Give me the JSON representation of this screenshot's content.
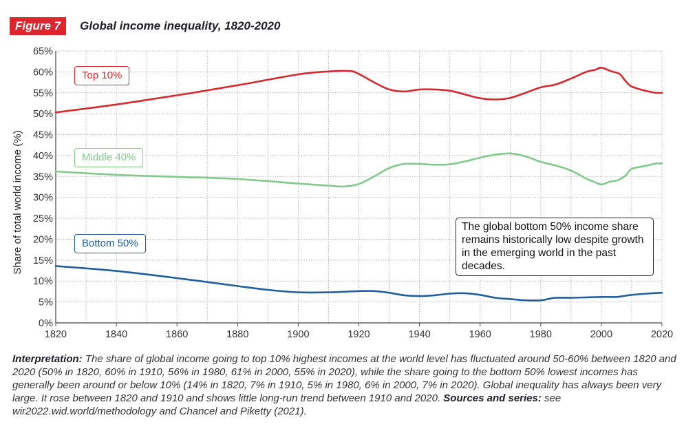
{
  "figure": {
    "tag": "Figure 7",
    "title": "Global income inequality, 1820-2020"
  },
  "colors": {
    "accent": "#e0242e",
    "top10": "#d9272e",
    "middle40": "#82c98c",
    "bottom50": "#1f5f9e",
    "grid": "#b9b9b9",
    "axis": "#444444"
  },
  "chart_data": {
    "type": "line",
    "title": "",
    "xlabel": "",
    "ylabel": "Share of total world income (%)",
    "xlim": [
      1820,
      2020
    ],
    "ylim": [
      0,
      65
    ],
    "x_ticks": [
      1820,
      1840,
      1860,
      1880,
      1900,
      1920,
      1940,
      1960,
      1980,
      2000,
      2020
    ],
    "y_ticks": [
      "0%",
      "5%",
      "10%",
      "15%",
      "20%",
      "25%",
      "30%",
      "35%",
      "40%",
      "45%",
      "50%",
      "55%",
      "60%",
      "65%"
    ],
    "grid": "dotted, both axes",
    "legend": "inline labels",
    "series": [
      {
        "name": "Top 10%",
        "color": "#d9272e",
        "points": [
          [
            1820,
            50.3
          ],
          [
            1840,
            52.2
          ],
          [
            1860,
            54.4
          ],
          [
            1880,
            56.8
          ],
          [
            1900,
            59.4
          ],
          [
            1910,
            60.1
          ],
          [
            1917,
            60.2
          ],
          [
            1920,
            59.5
          ],
          [
            1925,
            57.5
          ],
          [
            1930,
            55.8
          ],
          [
            1935,
            55.3
          ],
          [
            1940,
            55.8
          ],
          [
            1945,
            55.8
          ],
          [
            1950,
            55.5
          ],
          [
            1955,
            54.6
          ],
          [
            1960,
            53.7
          ],
          [
            1965,
            53.4
          ],
          [
            1970,
            53.8
          ],
          [
            1975,
            55.0
          ],
          [
            1980,
            56.3
          ],
          [
            1985,
            57.0
          ],
          [
            1990,
            58.4
          ],
          [
            1995,
            60.0
          ],
          [
            1998,
            60.5
          ],
          [
            2000,
            61.0
          ],
          [
            2003,
            60.2
          ],
          [
            2006,
            59.5
          ],
          [
            2008,
            57.8
          ],
          [
            2010,
            56.5
          ],
          [
            2015,
            55.4
          ],
          [
            2018,
            55.0
          ],
          [
            2020,
            55.0
          ]
        ]
      },
      {
        "name": "Middle 40%",
        "color": "#82c98c",
        "points": [
          [
            1820,
            36.2
          ],
          [
            1840,
            35.4
          ],
          [
            1860,
            34.9
          ],
          [
            1880,
            34.4
          ],
          [
            1900,
            33.3
          ],
          [
            1910,
            32.8
          ],
          [
            1915,
            32.6
          ],
          [
            1920,
            33.2
          ],
          [
            1925,
            35.0
          ],
          [
            1930,
            37.0
          ],
          [
            1935,
            38.0
          ],
          [
            1940,
            38.0
          ],
          [
            1945,
            37.8
          ],
          [
            1950,
            37.9
          ],
          [
            1955,
            38.6
          ],
          [
            1960,
            39.5
          ],
          [
            1965,
            40.2
          ],
          [
            1970,
            40.5
          ],
          [
            1975,
            39.8
          ],
          [
            1980,
            38.5
          ],
          [
            1985,
            37.6
          ],
          [
            1990,
            36.4
          ],
          [
            1995,
            34.5
          ],
          [
            1998,
            33.6
          ],
          [
            2000,
            33.1
          ],
          [
            2003,
            33.8
          ],
          [
            2005,
            34.0
          ],
          [
            2008,
            35.2
          ],
          [
            2010,
            36.8
          ],
          [
            2015,
            37.6
          ],
          [
            2018,
            38.1
          ],
          [
            2020,
            38.1
          ]
        ]
      },
      {
        "name": "Bottom 50%",
        "color": "#1f5f9e",
        "points": [
          [
            1820,
            13.6
          ],
          [
            1840,
            12.4
          ],
          [
            1860,
            10.7
          ],
          [
            1880,
            8.8
          ],
          [
            1890,
            7.9
          ],
          [
            1900,
            7.3
          ],
          [
            1910,
            7.3
          ],
          [
            1920,
            7.6
          ],
          [
            1925,
            7.6
          ],
          [
            1930,
            7.2
          ],
          [
            1935,
            6.6
          ],
          [
            1940,
            6.4
          ],
          [
            1945,
            6.6
          ],
          [
            1950,
            7.0
          ],
          [
            1955,
            7.1
          ],
          [
            1960,
            6.7
          ],
          [
            1965,
            6.0
          ],
          [
            1970,
            5.7
          ],
          [
            1975,
            5.4
          ],
          [
            1980,
            5.4
          ],
          [
            1983,
            5.8
          ],
          [
            1985,
            6.0
          ],
          [
            1990,
            6.0
          ],
          [
            1995,
            6.1
          ],
          [
            2000,
            6.2
          ],
          [
            2005,
            6.2
          ],
          [
            2008,
            6.5
          ],
          [
            2010,
            6.7
          ],
          [
            2015,
            7.0
          ],
          [
            2020,
            7.2
          ]
        ]
      }
    ]
  },
  "callout": {
    "text": "The global bottom 50% income share remains historically low despite growth in the emerging world in the past decades."
  },
  "note": {
    "lead": "Interpretation:",
    "body": " The share of global income going to top 10% highest incomes at the world level has fluctuated around 50-60% between 1820 and 2020 (50% in 1820, 60% in 1910, 56% in 1980, 61% in 2000, 55% in 2020), while the share going to the bottom 50% lowest incomes has generally been around or below 10% (14% in 1820, 7% in 1910, 5% in 1980, 6% in 2000, 7% in 2020). Global inequality has always been very large. It rose between 1820 and 1910 and shows little long-run trend between 1910 and 2020.",
    "sources_lead": " Sources and series:",
    "sources_body": " see wir2022.wid.world/methodology and Chancel and Piketty (2021)."
  }
}
